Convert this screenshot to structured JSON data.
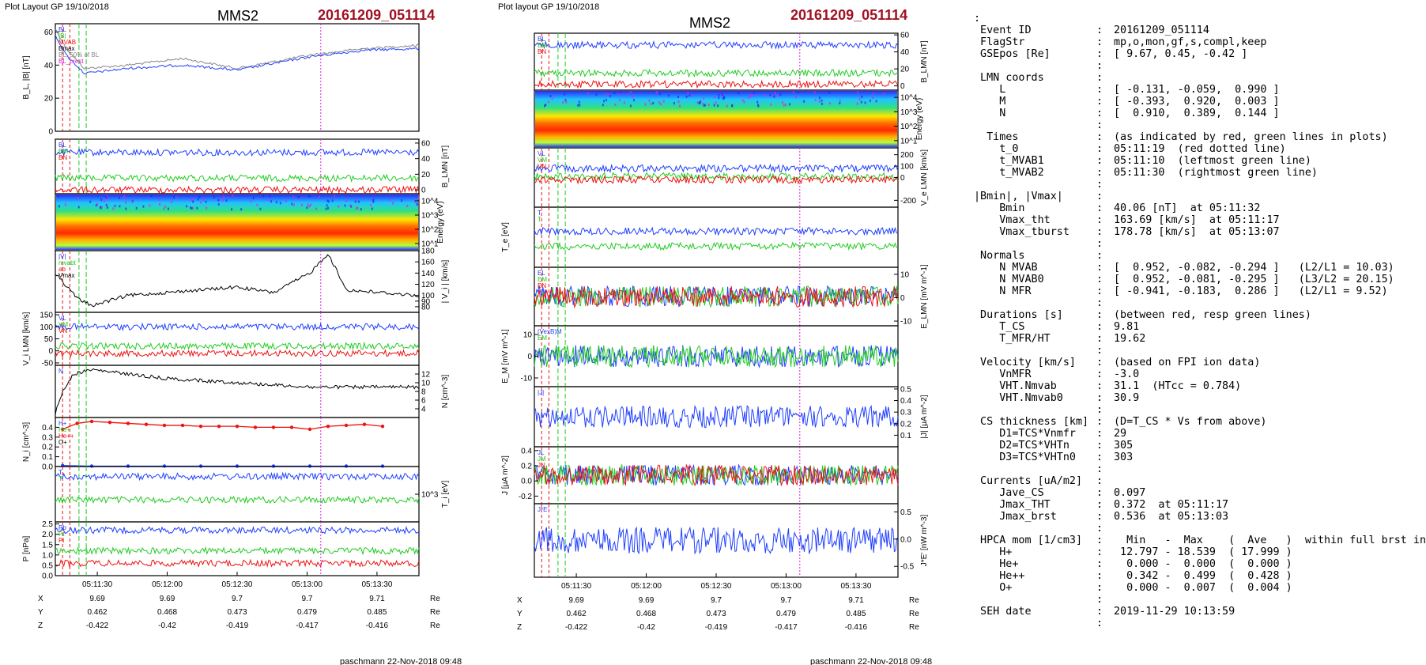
{
  "pages": [
    {
      "header": "Plot Layout GP 19/10/2018",
      "spacecraft": "MMS2",
      "event": "20161209_051114",
      "footer": "paschmann 22-Nov-2018 09:48"
    },
    {
      "header": "Plot layout GP 19/10/2018",
      "spacecraft": "MMS2",
      "event": "20161209_051114",
      "footer": "paschmann 22-Nov-2018 09:48"
    }
  ],
  "time_axis": {
    "ticks": [
      "05:11:30",
      "05:12:00",
      "05:12:30",
      "05:13:00",
      "05:13:30"
    ],
    "position_rows": [
      {
        "label": "X",
        "values": [
          "9.69",
          "9.69",
          "9.7",
          "9.7",
          "9.71"
        ],
        "unit": "Re"
      },
      {
        "label": "Y",
        "values": [
          "0.462",
          "0.468",
          "0.473",
          "0.479",
          "0.485"
        ],
        "unit": "Re"
      },
      {
        "label": "Z",
        "values": [
          "-0.422",
          "-0.42",
          "-0.419",
          "-0.417",
          "-0.416"
        ],
        "unit": "Re"
      }
    ]
  },
  "colors": {
    "blue": "#1f3fff",
    "red": "#ee1111",
    "green": "#22cc22",
    "black": "#000000",
    "gray": "#888888",
    "magenta": "#dd22dd",
    "darkred": "#a01020",
    "cyan": "#22bbdd"
  },
  "chart_data": [
    {
      "type": "line",
      "panel": "left-1",
      "ylabel": "B_L, |B| [nT]",
      "ylim": [
        0,
        65
      ],
      "ticks": [
        "0",
        "20",
        "40",
        "60"
      ],
      "legend": [
        "BL",
        "|B|",
        "MVAB",
        "Bmax",
        "BL, 50% of BL",
        "BL_crest"
      ],
      "series": [
        {
          "name": "|B|",
          "anchors": [
            [
              0,
              62
            ],
            [
              0.03,
              50
            ],
            [
              0.08,
              38
            ],
            [
              0.2,
              40
            ],
            [
              0.35,
              44
            ],
            [
              0.5,
              38
            ],
            [
              0.7,
              46
            ],
            [
              0.85,
              50
            ],
            [
              1,
              52
            ]
          ]
        },
        {
          "name": "BL",
          "anchors": [
            [
              0,
              58
            ],
            [
              0.03,
              46
            ],
            [
              0.08,
              35
            ],
            [
              0.2,
              38
            ],
            [
              0.35,
              40
            ],
            [
              0.5,
              37
            ],
            [
              0.7,
              45
            ],
            [
              0.85,
              49
            ],
            [
              1,
              50
            ]
          ]
        }
      ]
    },
    {
      "type": "line",
      "panel": "left-2",
      "ylabel": "B_LMN [nT]",
      "ylim": [
        -5,
        65
      ],
      "ticks": [
        "0",
        "20",
        "40",
        "60"
      ],
      "legend": [
        "BL",
        "BM",
        "BN"
      ],
      "series": [
        {
          "name": "BL",
          "level": 48
        },
        {
          "name": "BM",
          "level": 15
        },
        {
          "name": "BN",
          "level": 0
        }
      ]
    },
    {
      "type": "heatmap",
      "panel": "left-3",
      "ylabel": "Energy (eV)",
      "ticks": [
        "10^1",
        "10^2",
        "10^3",
        "10^4"
      ]
    },
    {
      "type": "line",
      "panel": "left-4",
      "ylabel": "| V_i | [km/s]",
      "ylim": [
        70,
        180
      ],
      "ticks": [
        "80",
        "90",
        "100",
        "120",
        "140",
        "160",
        "180"
      ],
      "legend": [
        "|V|",
        "mvabt",
        "ab",
        "Vmax"
      ],
      "anchors": [
        [
          0,
          140
        ],
        [
          0.06,
          95
        ],
        [
          0.1,
          82
        ],
        [
          0.2,
          100
        ],
        [
          0.4,
          110
        ],
        [
          0.5,
          115
        ],
        [
          0.6,
          105
        ],
        [
          0.7,
          140
        ],
        [
          0.75,
          175
        ],
        [
          0.8,
          110
        ],
        [
          1,
          100
        ]
      ]
    },
    {
      "type": "line",
      "panel": "left-5",
      "ylabel": "V_i LMN [km/s]",
      "ylim": [
        -60,
        160
      ],
      "ticks": [
        "-50",
        "0",
        "50",
        "100",
        "150"
      ],
      "legend": [
        "VL",
        "VM",
        "VN"
      ],
      "series": [
        {
          "name": "VL",
          "level": 100
        },
        {
          "name": "VM",
          "level": 20
        },
        {
          "name": "VN",
          "level": -10
        }
      ]
    },
    {
      "type": "line",
      "panel": "left-6",
      "ylabel": "N [cm^-3]",
      "ylim": [
        2,
        14
      ],
      "ticks": [
        "4",
        "6",
        "8",
        "10",
        "12"
      ],
      "legend": [
        "N"
      ],
      "anchors": [
        [
          0,
          3
        ],
        [
          0.02,
          8
        ],
        [
          0.05,
          12
        ],
        [
          0.1,
          13
        ],
        [
          0.3,
          11
        ],
        [
          0.5,
          10
        ],
        [
          0.7,
          9
        ],
        [
          1,
          9
        ]
      ]
    },
    {
      "type": "line",
      "panel": "left-7",
      "ylabel": "N_i [cm^-3]",
      "ylim": [
        0,
        0.5
      ],
      "ticks": [
        "0.0",
        "0.1",
        "0.2",
        "0.3",
        "0.4"
      ],
      "legend": [
        "H+",
        "He+",
        "He++",
        "O+"
      ],
      "series": [
        {
          "name": "He++",
          "x": [
            0.02,
            0.06,
            0.1,
            0.15,
            0.2,
            0.25,
            0.3,
            0.35,
            0.4,
            0.45,
            0.5,
            0.55,
            0.6,
            0.65,
            0.7,
            0.75,
            0.8,
            0.85,
            0.9
          ],
          "values": [
            0.38,
            0.44,
            0.46,
            0.45,
            0.44,
            0.43,
            0.42,
            0.42,
            0.41,
            0.41,
            0.41,
            0.4,
            0.4,
            0.4,
            0.38,
            0.41,
            0.42,
            0.43,
            0.41
          ]
        },
        {
          "name": "O+",
          "x": [
            0.02,
            0.1,
            0.2,
            0.3,
            0.4,
            0.5,
            0.6,
            0.7,
            0.8,
            0.9
          ],
          "values": [
            0.01,
            0.004,
            0.004,
            0.004,
            0.004,
            0.004,
            0.004,
            0.004,
            0.004,
            0.004
          ]
        }
      ]
    },
    {
      "type": "line",
      "panel": "left-8",
      "ylabel": "T_i [eV]",
      "ticks": [
        "10^3"
      ],
      "legend": [
        "T",
        "T"
      ],
      "series": [
        {
          "name": "T",
          "level": 0.82
        },
        {
          "name": "T",
          "level": 0.4
        }
      ]
    },
    {
      "type": "line",
      "panel": "left-9",
      "ylabel": "P [nPa]",
      "ylim": [
        0,
        2.6
      ],
      "ticks": [
        "0.0",
        "0.5",
        "1.0",
        "1.5",
        "2.0",
        "2.5"
      ],
      "legend": [
        "Pb",
        "Pt",
        "Pi"
      ],
      "series": [
        {
          "name": "Pb",
          "level": 2.2
        },
        {
          "name": "Pt",
          "level": 1.2
        },
        {
          "name": "Pi",
          "level": 0.6
        }
      ]
    },
    {
      "type": "line",
      "panel": "right-1",
      "ylabel": "B_LMN [nT]",
      "ylim": [
        -5,
        62
      ],
      "ticks": [
        "0",
        "20",
        "40",
        "60"
      ],
      "legend": [
        "BL",
        "BM",
        "BN"
      ],
      "series": [
        {
          "name": "BL",
          "level": 48
        },
        {
          "name": "BM",
          "level": 15
        },
        {
          "name": "BN",
          "level": 2
        }
      ]
    },
    {
      "type": "heatmap",
      "panel": "right-2",
      "ylabel": "Energy (eV)",
      "ticks": [
        "10^1",
        "10^2",
        "10^3",
        "10^4"
      ]
    },
    {
      "type": "line",
      "panel": "right-3",
      "ylabel": "V_e LMN [km/s]",
      "ylim": [
        -260,
        260
      ],
      "ticks": [
        "-200",
        "0",
        "100",
        "200"
      ],
      "legend": [
        "VL",
        "VM",
        "VN"
      ],
      "series": [
        {
          "name": "VL",
          "level": 80
        },
        {
          "name": "VM",
          "level": 10
        },
        {
          "name": "VN",
          "level": -20
        }
      ]
    },
    {
      "type": "line",
      "panel": "right-4",
      "ylabel": "T_e [eV]",
      "legend": [
        "T",
        "T"
      ],
      "series": [
        {
          "name": "T",
          "level": 0.6
        },
        {
          "name": "T",
          "level": 0.35
        }
      ]
    },
    {
      "type": "line",
      "panel": "right-5",
      "ylabel": "E_LMN [mV m^-1]",
      "ylim": [
        -12,
        13
      ],
      "ticks": [
        "-10",
        "0",
        "10"
      ],
      "legend": [
        "EL",
        "EM",
        "EN"
      ]
    },
    {
      "type": "line",
      "panel": "right-6",
      "ylabel": "E_M [mV m^-1]",
      "ylim": [
        -14,
        14
      ],
      "ticks": [
        "-10",
        "0",
        "10"
      ],
      "legend": [
        "(VexB)M",
        "EM"
      ]
    },
    {
      "type": "line",
      "panel": "right-7",
      "ylabel": "|J| [μA m^-2]",
      "ylim": [
        0,
        0.52
      ],
      "ticks": [
        "0.1",
        "0.2",
        "0.3",
        "0.4",
        "0.5"
      ],
      "legend": [
        "|J|"
      ]
    },
    {
      "type": "line",
      "panel": "right-8",
      "ylabel": "J [μA m^-2]",
      "ylim": [
        -0.3,
        0.45
      ],
      "ticks": [
        "-0.2",
        "0.0",
        "0.2",
        "0.4"
      ],
      "legend": [
        "JL",
        "JM",
        "JN"
      ]
    },
    {
      "type": "line",
      "panel": "right-9",
      "ylabel": "J*E' [nW m^-3]",
      "ylim": [
        -0.7,
        0.65
      ],
      "ticks": [
        "-0.5",
        "0.0",
        "0.5"
      ],
      "legend": [
        "J*E'"
      ]
    }
  ],
  "summary_lines": [
    {
      "k": ":",
      "v": ""
    },
    {
      "k": " Event ID",
      "v": "20161209_051114"
    },
    {
      "k": " FlagStr",
      "v": "mp,o,mon,gf,s,compl,keep"
    },
    {
      "k": " GSEpos [Re]",
      "v": "[ 9.67, 0.45, -0.42 ]"
    },
    {
      "k": "",
      "v": ""
    },
    {
      "k": " LMN coords",
      "v": ""
    },
    {
      "k": "    L",
      "v": "[ -0.131, -0.059,  0.990 ]"
    },
    {
      "k": "    M",
      "v": "[ -0.393,  0.920,  0.003 ]"
    },
    {
      "k": "    N",
      "v": "[  0.910,  0.389,  0.144 ]"
    },
    {
      "k": "",
      "v": ""
    },
    {
      "k": "  Times",
      "v": "(as indicated by red, green lines in plots)"
    },
    {
      "k": "    t_0",
      "v": "05:11:19  (red dotted line)"
    },
    {
      "k": "    t_MVAB1",
      "v": "05:11:10  (leftmost green line)"
    },
    {
      "k": "    t_MVAB2",
      "v": "05:11:30  (rightmost green line)"
    },
    {
      "k": "",
      "v": ""
    },
    {
      "k": "|Bmin|, |Vmax|",
      "v": ""
    },
    {
      "k": "    Bmin",
      "v": "40.06 [nT]  at 05:11:32"
    },
    {
      "k": "    Vmax_tht",
      "v": "163.69 [km/s]  at 05:11:17"
    },
    {
      "k": "    Vmax_tburst",
      "v": "178.78 [km/s]  at 05:13:07"
    },
    {
      "k": "",
      "v": ""
    },
    {
      "k": " Normals",
      "v": ""
    },
    {
      "k": "    N MVAB",
      "v": "[  0.952, -0.082, -0.294 ]   (L2/L1 = 10.03)"
    },
    {
      "k": "    N MVAB0",
      "v": "[  0.952, -0.081, -0.295 ]   (L3/L2 = 20.15)"
    },
    {
      "k": "    N MFR",
      "v": "[ -0.941, -0.183,  0.286 ]   (L2/L1 = 9.52)"
    },
    {
      "k": "",
      "v": ""
    },
    {
      "k": " Durations [s]",
      "v": "(between red, resp green lines)"
    },
    {
      "k": "    T_CS",
      "v": "9.81"
    },
    {
      "k": "    T_MFR/HT",
      "v": "19.62"
    },
    {
      "k": "",
      "v": ""
    },
    {
      "k": " Velocity [km/s]",
      "v": "(based on FPI ion data)"
    },
    {
      "k": "    VnMFR",
      "v": "-3.0"
    },
    {
      "k": "    VHT.Nmvab",
      "v": "31.1  (HTcc = 0.784)"
    },
    {
      "k": "    VHT.Nmvab0",
      "v": "30.9"
    },
    {
      "k": "",
      "v": ""
    },
    {
      "k": " CS thickness [km]",
      "v": "(D=T_CS * Vs from above)"
    },
    {
      "k": "    D1=TCS*Vnmfr",
      "v": "29"
    },
    {
      "k": "    D2=TCS*VHTn",
      "v": "305"
    },
    {
      "k": "    D3=TCS*VHTn0",
      "v": "303"
    },
    {
      "k": "",
      "v": ""
    },
    {
      "k": " Currents [uA/m2]",
      "v": ""
    },
    {
      "k": "    Jave_CS",
      "v": "0.097"
    },
    {
      "k": "    Jmax_THT",
      "v": "0.372  at 05:11:17"
    },
    {
      "k": "    Jmax_brst",
      "v": "0.536  at 05:13:03"
    },
    {
      "k": "",
      "v": ""
    },
    {
      "k": " HPCA mom [1/cm3]",
      "v": "  Min   -  Max    (  Ave   )  within full brst int"
    },
    {
      "k": "    H+",
      "v": " 12.797 - 18.539  ( 17.999 )"
    },
    {
      "k": "    He+",
      "v": "  0.000 -  0.000  (  0.000 )"
    },
    {
      "k": "    He++",
      "v": "  0.342 -  0.499  (  0.428 )"
    },
    {
      "k": "    O+",
      "v": "  0.000 -  0.007  (  0.004 )"
    },
    {
      "k": "",
      "v": ""
    },
    {
      "k": " SEH date",
      "v": "2019-11-29 10:13:59"
    },
    {
      "k": "",
      "v": ""
    }
  ]
}
